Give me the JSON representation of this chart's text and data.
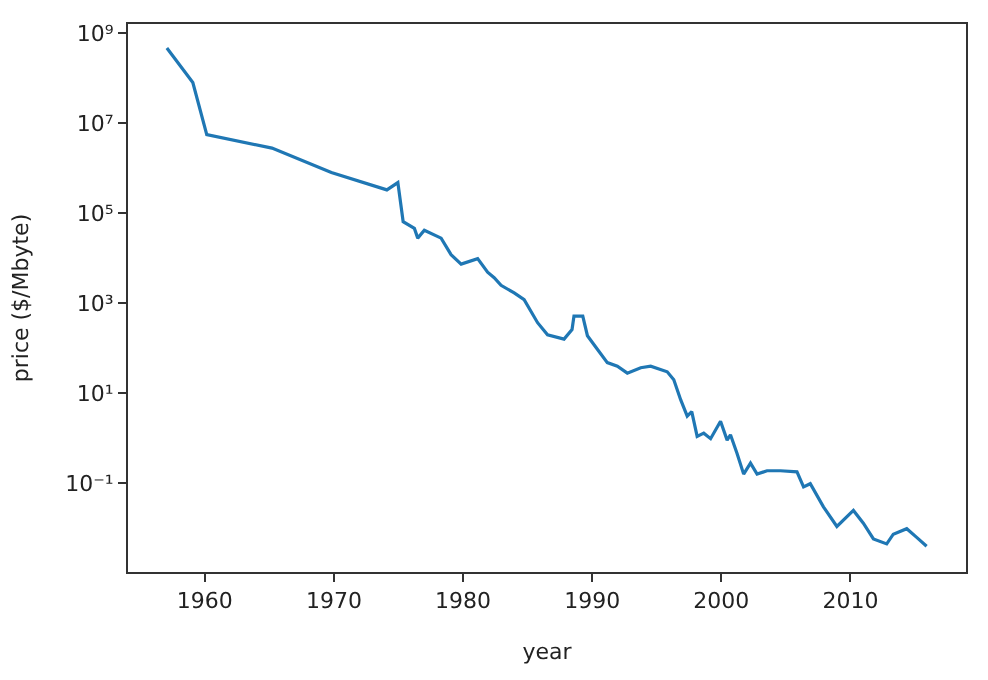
{
  "chart_data": {
    "type": "line",
    "xlabel": "year",
    "ylabel": "price ($/Mbyte)",
    "log": "y",
    "marker": "none",
    "line_style": "solid",
    "xlim": [
      1954.05,
      2018.95
    ],
    "ylim": [
      0.00107,
      1600000000.0
    ],
    "xticks": [
      1960,
      1970,
      1980,
      1990,
      2000,
      2010
    ],
    "yticks": [
      {
        "value": 1000000000.0,
        "label": "10⁹"
      },
      {
        "value": 10000000.0,
        "label": "10⁷"
      },
      {
        "value": 100000.0,
        "label": "10⁵"
      },
      {
        "value": 1000.0,
        "label": "10³"
      },
      {
        "value": 10,
        "label": "10¹"
      },
      {
        "value": 0.1,
        "label": "10⁻¹"
      }
    ],
    "x": [
      1957.06,
      1959.07,
      1960.15,
      1965.2,
      1969.8,
      1974.1,
      1974.95,
      1975.36,
      1976.23,
      1976.49,
      1977.0,
      1978.3,
      1979.07,
      1979.85,
      1981.13,
      1981.9,
      1982.41,
      1982.94,
      1983.96,
      1984.73,
      1985.77,
      1986.54,
      1987.82,
      1988.44,
      1988.59,
      1989.27,
      1989.63,
      1990.4,
      1991.17,
      1991.95,
      1992.72,
      1993.76,
      1994.53,
      1995.81,
      1996.32,
      1996.85,
      1997.36,
      1997.71,
      1998.13,
      1998.64,
      1999.17,
      1999.94,
      2000.45,
      2000.71,
      2001.22,
      2001.73,
      2002.26,
      2002.77,
      2003.54,
      2004.58,
      2005.86,
      2006.37,
      2006.89,
      2007.91,
      2008.95,
      2010.23,
      2011.0,
      2011.78,
      2012.81,
      2013.32,
      2014.36,
      2015.13,
      2015.9
    ],
    "series": [
      {
        "color": "#1f77b4",
        "values": [
          470000000.0,
          80000000.0,
          5600000.0,
          2800000.0,
          800000.0,
          330000.0,
          480000.0,
          65000.0,
          46000.0,
          28000.0,
          42000.0,
          28000.0,
          12000.0,
          7400,
          9800,
          4900,
          3700,
          2500,
          1700,
          1200,
          370,
          200,
          160,
          260,
          520,
          520,
          190,
          95,
          48,
          40,
          28,
          37,
          40,
          30,
          20,
          7.2,
          3.1,
          3.9,
          1.1,
          1.3,
          0.98,
          2.4,
          0.91,
          1.2,
          0.46,
          0.16,
          0.28,
          0.16,
          0.19,
          0.19,
          0.18,
          0.083,
          0.098,
          0.03,
          0.011,
          0.025,
          0.013,
          0.0058,
          0.0045,
          0.0074,
          0.0098,
          0.0063,
          0.004
        ]
      }
    ]
  }
}
